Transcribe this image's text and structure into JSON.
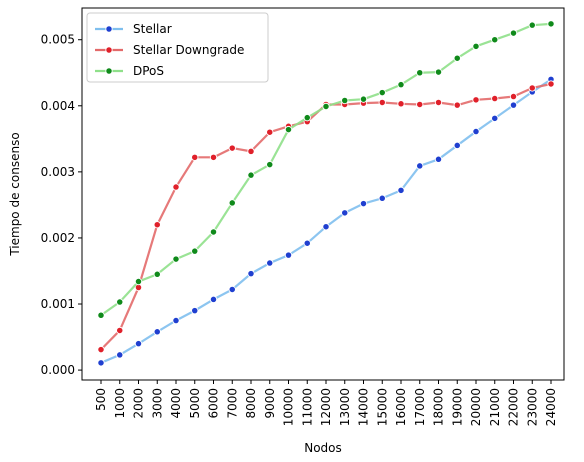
{
  "chart_data": {
    "type": "line",
    "title": "",
    "xlabel": "Nodos",
    "ylabel": "Tiempo de consenso",
    "categories": [
      "500",
      "1000",
      "2000",
      "3000",
      "4000",
      "5000",
      "6000",
      "7000",
      "8000",
      "9000",
      "10000",
      "11000",
      "12000",
      "13000",
      "14000",
      "15000",
      "16000",
      "17000",
      "18000",
      "19000",
      "20000",
      "21000",
      "22000",
      "23000",
      "24000"
    ],
    "ylim": [
      -0.00015,
      0.00548
    ],
    "yticks": [
      0.0,
      0.001,
      0.002,
      0.003,
      0.004,
      0.005
    ],
    "ytick_labels": [
      "0.000",
      "0.001",
      "0.002",
      "0.003",
      "0.004",
      "0.005"
    ],
    "grid": false,
    "legend_position": "top-left",
    "series": [
      {
        "name": "Stellar",
        "line_color": "#7fbfee",
        "marker_color": "#1f3fd0",
        "values": [
          0.00011,
          0.00023,
          0.0004,
          0.00058,
          0.00075,
          0.0009,
          0.00107,
          0.00122,
          0.00146,
          0.00162,
          0.00174,
          0.00192,
          0.00217,
          0.00238,
          0.00252,
          0.0026,
          0.00272,
          0.00309,
          0.00319,
          0.0034,
          0.00361,
          0.00381,
          0.00401,
          0.00421,
          0.0044
        ]
      },
      {
        "name": "Stellar Downgrade",
        "line_color": "#e36a6a",
        "marker_color": "#e0202a",
        "values": [
          0.00031,
          0.0006,
          0.00125,
          0.0022,
          0.00277,
          0.00322,
          0.00322,
          0.00336,
          0.00331,
          0.0036,
          0.00369,
          0.00376,
          0.00402,
          0.00402,
          0.00404,
          0.00405,
          0.00403,
          0.00402,
          0.00405,
          0.00401,
          0.00409,
          0.00411,
          0.00414,
          0.00427,
          0.00433
        ]
      },
      {
        "name": "DPoS",
        "line_color": "#8fe08a",
        "marker_color": "#0f8a1a",
        "values": [
          0.00083,
          0.00103,
          0.00134,
          0.00145,
          0.00168,
          0.0018,
          0.00209,
          0.00253,
          0.00295,
          0.00311,
          0.00364,
          0.00382,
          0.00399,
          0.00408,
          0.0041,
          0.0042,
          0.00432,
          0.0045,
          0.00451,
          0.00472,
          0.0049,
          0.005,
          0.0051,
          0.00522,
          0.00524
        ]
      }
    ]
  }
}
